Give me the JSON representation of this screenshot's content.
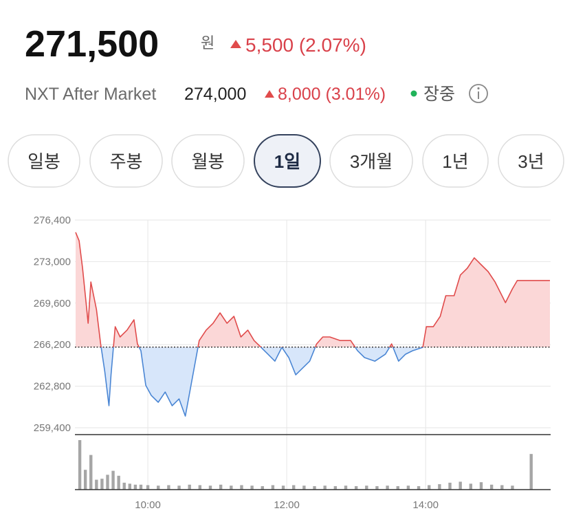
{
  "header": {
    "price": "271,500",
    "unit": "원",
    "change": "5,500 (2.07%)",
    "after_market": {
      "label": "NXT After Market",
      "price": "274,000",
      "change": "8,000 (3.01%)",
      "status": "장중"
    }
  },
  "tabs": {
    "items": [
      "일봉",
      "주봉",
      "월봉",
      "1일",
      "3개월",
      "1년",
      "3년"
    ],
    "active": 3
  },
  "chart_data": [
    {
      "type": "line",
      "x": [
        8.96,
        9.01,
        9.06,
        9.11,
        9.14,
        9.18,
        9.26,
        9.32,
        9.38,
        9.44,
        9.47,
        9.53,
        9.6,
        9.7,
        9.8,
        9.85,
        9.9,
        9.97,
        10.05,
        10.15,
        10.25,
        10.35,
        10.45,
        10.54,
        10.64,
        10.74,
        10.84,
        10.94,
        11.04,
        11.14,
        11.24,
        11.34,
        11.44,
        11.53,
        11.63,
        11.73,
        11.83,
        11.93,
        12.03,
        12.13,
        12.23,
        12.33,
        12.43,
        12.52,
        12.62,
        12.77,
        12.92,
        13.02,
        13.12,
        13.27,
        13.42,
        13.51,
        13.61,
        13.71,
        13.81,
        13.96,
        14.01,
        14.11,
        14.21,
        14.29,
        14.41,
        14.5,
        14.6,
        14.7,
        14.8,
        14.9,
        15.0,
        15.15,
        15.25,
        15.32,
        15.69,
        15.79
      ],
      "values": [
        275400,
        274700,
        272460,
        269640,
        267950,
        271330,
        269080,
        266260,
        264010,
        261200,
        263730,
        267670,
        266830,
        267390,
        268240,
        266260,
        265700,
        262880,
        262040,
        261480,
        262320,
        261200,
        261760,
        260350,
        263450,
        266540,
        267390,
        267950,
        268800,
        267950,
        268520,
        266830,
        267390,
        266540,
        265980,
        265420,
        264850,
        265980,
        265140,
        263730,
        264290,
        264850,
        266260,
        266830,
        266830,
        266540,
        266540,
        265700,
        265140,
        264850,
        265420,
        266260,
        264850,
        265420,
        265700,
        265980,
        267670,
        267670,
        268520,
        270210,
        270210,
        271900,
        272460,
        273310,
        272740,
        272180,
        271330,
        269640,
        270770,
        271450,
        271450,
        271450
      ],
      "baseline": 266000,
      "colors": {
        "up": "#e04b4b",
        "down": "#4a86d4",
        "up_fill": "#fbd7d7",
        "down_fill": "#d7e6fa"
      },
      "xlim": [
        8.95,
        15.8
      ],
      "ylim": [
        259400,
        276400
      ],
      "yticks": [
        {
          "value": 259400,
          "label": "259,400"
        },
        {
          "value": 262800,
          "label": "262,800"
        },
        {
          "value": 266200,
          "label": "266,200"
        },
        {
          "value": 269600,
          "label": "269,600"
        },
        {
          "value": 273000,
          "label": "273,000"
        },
        {
          "value": 276400,
          "label": "276,400"
        }
      ],
      "xticks": [
        {
          "value": 10,
          "label": "10:00"
        },
        {
          "value": 12,
          "label": "12:00"
        },
        {
          "value": 14,
          "label": "14:00"
        }
      ],
      "grid": true
    },
    {
      "type": "bar",
      "x": [
        9.02,
        9.1,
        9.18,
        9.26,
        9.34,
        9.42,
        9.5,
        9.58,
        9.66,
        9.74,
        9.82,
        9.9,
        10.0,
        10.15,
        10.3,
        10.45,
        10.6,
        10.75,
        10.9,
        11.05,
        11.2,
        11.35,
        11.5,
        11.65,
        11.8,
        11.95,
        12.1,
        12.25,
        12.4,
        12.55,
        12.7,
        12.85,
        13.0,
        13.15,
        13.3,
        13.45,
        13.6,
        13.75,
        13.9,
        14.05,
        14.2,
        14.35,
        14.5,
        14.65,
        14.8,
        14.95,
        15.1,
        15.25,
        15.52
      ],
      "values": [
        100,
        40,
        70,
        20,
        22,
        30,
        38,
        28,
        14,
        12,
        10,
        10,
        9,
        8,
        9,
        8,
        10,
        9,
        8,
        10,
        8,
        9,
        8,
        7,
        9,
        8,
        9,
        8,
        7,
        8,
        7,
        8,
        7,
        8,
        7,
        8,
        7,
        8,
        7,
        9,
        11,
        14,
        16,
        12,
        15,
        10,
        9,
        8,
        72
      ],
      "color": "#a6a6a6",
      "xlim": [
        8.95,
        15.8
      ],
      "ylim": [
        0,
        100
      ]
    }
  ]
}
